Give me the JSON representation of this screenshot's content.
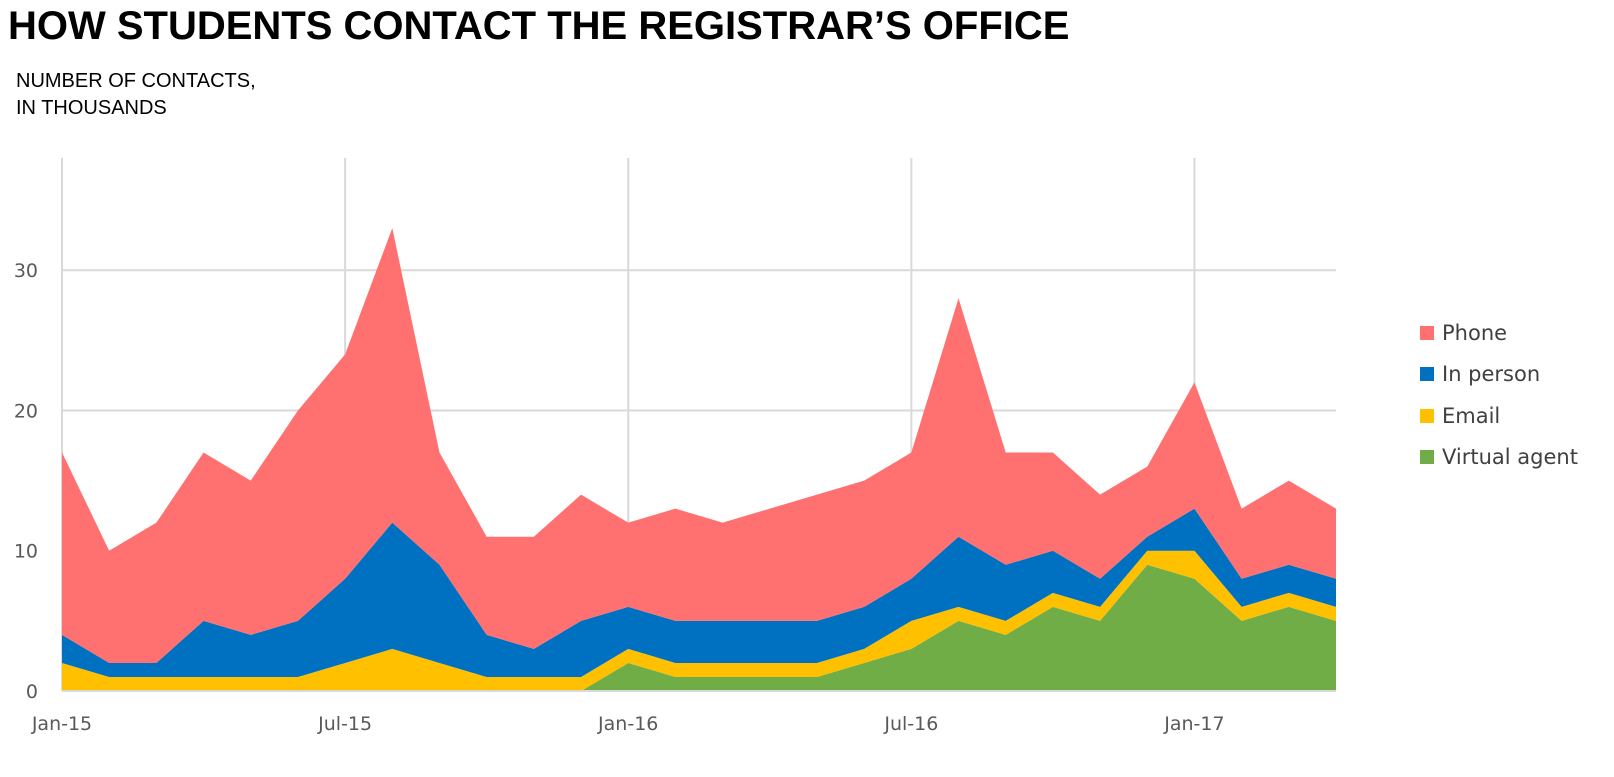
{
  "title": "HOW STUDENTS CONTACT THE REGISTRAR’S OFFICE",
  "subtitle": [
    "NUMBER OF CONTACTS,",
    "IN THOUSANDS"
  ],
  "chart_data": {
    "type": "area",
    "stacked": true,
    "x": [
      "Jan-15",
      "Feb-15",
      "Mar-15",
      "Apr-15",
      "May-15",
      "Jun-15",
      "Jul-15",
      "Aug-15",
      "Sep-15",
      "Oct-15",
      "Nov-15",
      "Dec-15",
      "Jan-16",
      "Feb-16",
      "Mar-16",
      "Apr-16",
      "May-16",
      "Jun-16",
      "Jul-16",
      "Aug-16",
      "Sep-16",
      "Oct-16",
      "Nov-16",
      "Dec-16",
      "Jan-17",
      "Feb-17",
      "Mar-17",
      "Apr-17"
    ],
    "x_tick_labels": [
      "Jan-15",
      "Jul-15",
      "Jan-16",
      "Jul-16",
      "Jan-17"
    ],
    "ylim": [
      0,
      38
    ],
    "y_ticks": [
      0,
      10,
      20,
      30
    ],
    "grid": true,
    "legend_position": "right",
    "series": [
      {
        "name": "Virtual agent",
        "color": "#70AD47",
        "values": [
          0,
          0,
          0,
          0,
          0,
          0,
          0,
          0,
          0,
          0,
          0,
          0,
          2,
          1,
          1,
          1,
          1,
          2,
          3,
          5,
          4,
          6,
          5,
          9,
          8,
          5,
          6,
          5
        ]
      },
      {
        "name": "Email",
        "color": "#FFC000",
        "values": [
          2,
          1,
          1,
          1,
          1,
          1,
          2,
          3,
          2,
          1,
          1,
          1,
          1,
          1,
          1,
          1,
          1,
          1,
          2,
          1,
          1,
          1,
          1,
          1,
          2,
          1,
          1,
          1
        ]
      },
      {
        "name": "In person",
        "color": "#0070C0",
        "values": [
          2,
          1,
          1,
          4,
          3,
          4,
          6,
          9,
          7,
          3,
          2,
          4,
          3,
          3,
          3,
          3,
          3,
          3,
          3,
          5,
          4,
          3,
          2,
          1,
          3,
          2,
          2,
          2
        ]
      },
      {
        "name": "Phone",
        "color": "#FF7171",
        "values": [
          13,
          8,
          10,
          12,
          11,
          15,
          16,
          21,
          8,
          7,
          8,
          9,
          6,
          8,
          7,
          8,
          9,
          9,
          9,
          17,
          8,
          7,
          6,
          5,
          9,
          5,
          6,
          5
        ]
      }
    ],
    "legend_order": [
      "Phone",
      "In person",
      "Email",
      "Virtual agent"
    ]
  }
}
